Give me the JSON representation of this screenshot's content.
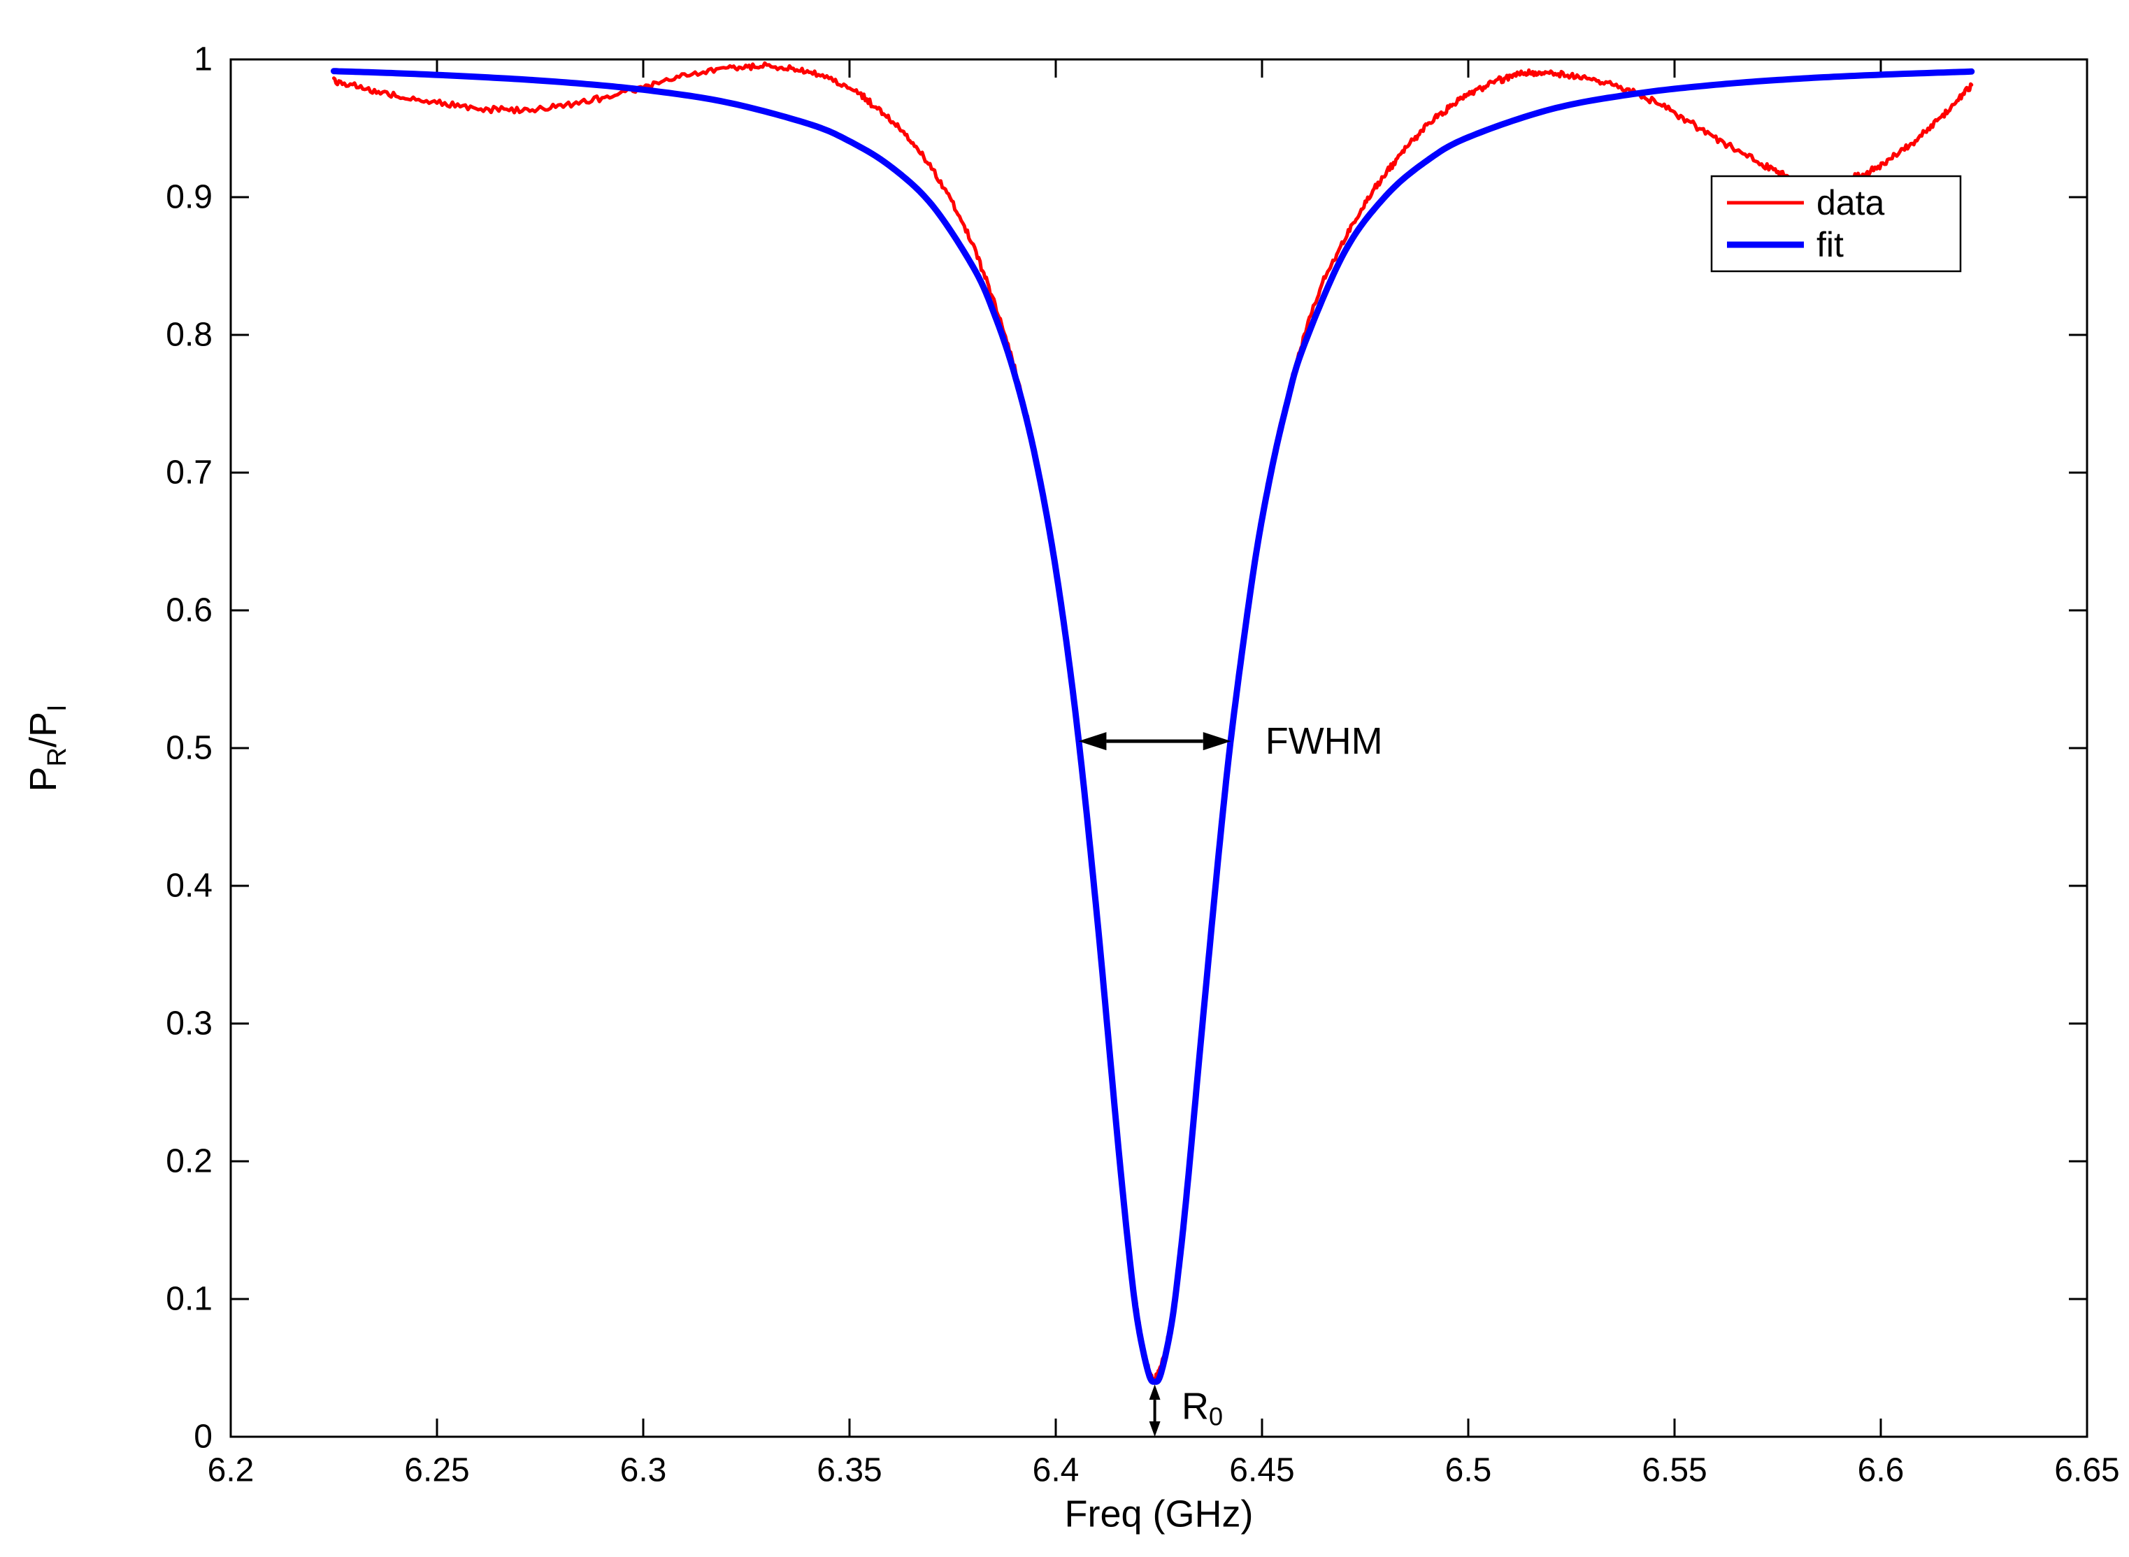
{
  "chart_data": {
    "type": "line",
    "title": "",
    "xlabel": "Freq (GHz)",
    "ylabel": "P_R/P_I",
    "ylabel_parts": [
      {
        "text": "P",
        "sub": false
      },
      {
        "text": "R",
        "sub": true
      },
      {
        "text": "/P",
        "sub": false
      },
      {
        "text": "I",
        "sub": true
      }
    ],
    "xlim": [
      6.2,
      6.65
    ],
    "ylim": [
      0,
      1
    ],
    "grid": false,
    "x_ticks": {
      "values": [
        6.2,
        6.25,
        6.3,
        6.35,
        6.4,
        6.45,
        6.5,
        6.55,
        6.6,
        6.65
      ],
      "labels": [
        "6.2",
        "6.25",
        "6.3",
        "6.35",
        "6.4",
        "6.45",
        "6.5",
        "6.55",
        "6.6",
        "6.65"
      ]
    },
    "y_ticks": {
      "values": [
        0,
        0.1,
        0.2,
        0.3,
        0.4,
        0.5,
        0.6,
        0.7,
        0.8,
        0.9,
        1
      ],
      "labels": [
        "0",
        "0.1",
        "0.2",
        "0.3",
        "0.4",
        "0.5",
        "0.6",
        "0.7",
        "0.8",
        "0.9",
        "1"
      ]
    },
    "legend": {
      "position": "upper right",
      "entries": [
        {
          "label": "data",
          "color": "#FF0000",
          "line_width": 5
        },
        {
          "label": "fit",
          "color": "#0000FF",
          "line_width": 9
        }
      ]
    },
    "fit_model": {
      "shape": "lorentzian_dip",
      "f0_GHz": 6.424,
      "fwhm_GHz": 0.038,
      "min_ratio": 0.04
    },
    "series": [
      {
        "name": "data",
        "color": "#FF0000",
        "line_width": 5,
        "noise_amplitude": 0.0022,
        "points": [
          [
            6.225,
            0.985
          ],
          [
            6.232,
            0.979
          ],
          [
            6.24,
            0.9735
          ],
          [
            6.25,
            0.9685
          ],
          [
            6.26,
            0.9645
          ],
          [
            6.27,
            0.9635
          ],
          [
            6.28,
            0.966
          ],
          [
            6.29,
            0.972
          ],
          [
            6.3,
            0.98
          ],
          [
            6.31,
            0.988
          ],
          [
            6.32,
            0.9935
          ],
          [
            6.327,
            0.995
          ],
          [
            6.335,
            0.9935
          ],
          [
            6.342,
            0.989
          ],
          [
            6.35,
            0.979
          ],
          [
            6.356,
            0.9665
          ],
          [
            6.362,
            0.95
          ],
          [
            6.368,
            0.929
          ],
          [
            6.374,
            0.901
          ],
          [
            6.38,
            0.864
          ],
          [
            6.385,
            0.824
          ],
          [
            6.39,
            0.776
          ],
          [
            6.395,
            0.714
          ],
          [
            6.4,
            0.632
          ],
          [
            6.405,
            0.523
          ],
          [
            6.41,
            0.38
          ],
          [
            6.415,
            0.218
          ],
          [
            6.418,
            0.13
          ],
          [
            6.4205,
            0.077
          ],
          [
            6.4225,
            0.049
          ],
          [
            6.424,
            0.042
          ],
          [
            6.426,
            0.056
          ],
          [
            6.428,
            0.085
          ],
          [
            6.43,
            0.129
          ],
          [
            6.432,
            0.187
          ],
          [
            6.436,
            0.317
          ],
          [
            6.44,
            0.442
          ],
          [
            6.443,
            0.523
          ],
          [
            6.448,
            0.634
          ],
          [
            6.452,
            0.701
          ],
          [
            6.456,
            0.753
          ],
          [
            6.46,
            0.797
          ],
          [
            6.465,
            0.84
          ],
          [
            6.47,
            0.869
          ],
          [
            6.475,
            0.896
          ],
          [
            6.48,
            0.917
          ],
          [
            6.485,
            0.936
          ],
          [
            6.49,
            0.952
          ],
          [
            6.495,
            0.964
          ],
          [
            6.5,
            0.9745
          ],
          [
            6.505,
            0.982
          ],
          [
            6.51,
            0.9875
          ],
          [
            6.515,
            0.99
          ],
          [
            6.52,
            0.9895
          ],
          [
            6.526,
            0.988
          ],
          [
            6.532,
            0.984
          ],
          [
            6.54,
            0.976
          ],
          [
            6.548,
            0.9645
          ],
          [
            6.556,
            0.95
          ],
          [
            6.564,
            0.936
          ],
          [
            6.572,
            0.923
          ],
          [
            6.578,
            0.9145
          ],
          [
            6.584,
            0.9105
          ],
          [
            6.59,
            0.9115
          ],
          [
            6.596,
            0.917
          ],
          [
            6.602,
            0.927
          ],
          [
            6.608,
            0.94
          ],
          [
            6.614,
            0.956
          ],
          [
            6.619,
            0.972
          ],
          [
            6.622,
            0.981
          ]
        ]
      },
      {
        "name": "fit",
        "color": "#0000FF",
        "line_width": 9,
        "noise_amplitude": 0,
        "points": [
          [
            6.225,
            0.9915
          ],
          [
            6.24,
            0.99
          ],
          [
            6.26,
            0.9873
          ],
          [
            6.28,
            0.9836
          ],
          [
            6.3,
            0.978
          ],
          [
            6.32,
            0.969
          ],
          [
            6.34,
            0.9533
          ],
          [
            6.35,
            0.9406
          ],
          [
            6.36,
            0.9222
          ],
          [
            6.37,
            0.8943
          ],
          [
            6.38,
            0.8491
          ],
          [
            6.385,
            0.8159
          ],
          [
            6.39,
            0.7716
          ],
          [
            6.395,
            0.7117
          ],
          [
            6.4,
            0.6301
          ],
          [
            6.405,
            0.52
          ],
          [
            6.41,
            0.3778
          ],
          [
            6.415,
            0.2159
          ],
          [
            6.418,
            0.127
          ],
          [
            6.42,
            0.0807
          ],
          [
            6.4225,
            0.046
          ],
          [
            6.424,
            0.04
          ],
          [
            6.4255,
            0.046
          ],
          [
            6.428,
            0.0807
          ],
          [
            6.43,
            0.127
          ],
          [
            6.432,
            0.1846
          ],
          [
            6.436,
            0.3137
          ],
          [
            6.44,
            0.4383
          ],
          [
            6.443,
            0.52
          ],
          [
            6.448,
            0.6301
          ],
          [
            6.452,
            0.6973
          ],
          [
            6.456,
            0.7498
          ],
          [
            6.46,
            0.7909
          ],
          [
            6.47,
            0.8601
          ],
          [
            6.48,
            0.9009
          ],
          [
            6.49,
            0.9265
          ],
          [
            6.5,
            0.9435
          ],
          [
            6.52,
            0.9638
          ],
          [
            6.54,
            0.9749
          ],
          [
            6.56,
            0.9816
          ],
          [
            6.58,
            0.986
          ],
          [
            6.6,
            0.9889
          ],
          [
            6.622,
            0.9912
          ]
        ]
      }
    ],
    "annotations": [
      {
        "type": "double_arrow_h",
        "x1": 6.4055,
        "x2": 6.4425,
        "y": 0.505,
        "label": "FWHM",
        "label_sub": "",
        "label_x": 6.4508,
        "label_y": 0.505
      },
      {
        "type": "double_arrow_v",
        "x": 6.424,
        "y1": 0.0,
        "y2": 0.038,
        "label": "R",
        "label_sub": "0",
        "label_x": 6.4305,
        "label_y": 0.022
      }
    ],
    "colors": {
      "axis": "#000000",
      "background": "#FFFFFF",
      "data_series": "#FF0000",
      "fit_series": "#0000FF"
    }
  }
}
